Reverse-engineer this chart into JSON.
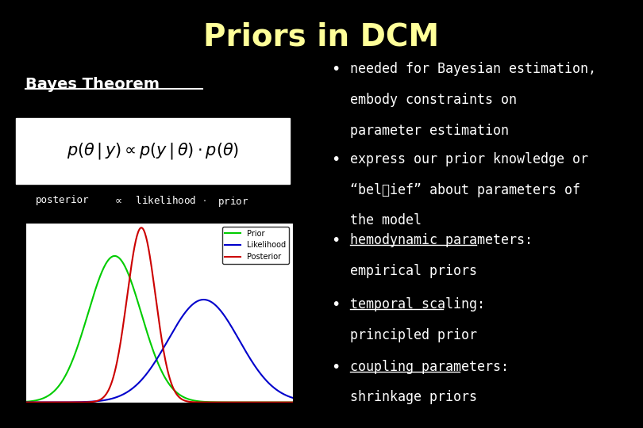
{
  "title": "Priors in DCM",
  "title_color": "#ffff99",
  "title_fontsize": 28,
  "background_color": "#000000",
  "text_color": "#ffffff",
  "bayes_heading": "Bayes Theorem",
  "prior_mean": 20,
  "prior_std": 1.5,
  "prior_peak": 0.57,
  "likelihood_mean": 25,
  "likelihood_std": 2.0,
  "likelihood_peak": 0.4,
  "posterior_mean": 21.5,
  "posterior_std": 0.8,
  "posterior_peak": 0.68,
  "prior_color": "#00cc00",
  "likelihood_color": "#0000cc",
  "posterior_color": "#cc0000",
  "plot_xlim": [
    15,
    30
  ],
  "plot_ylim": [
    0,
    0.7
  ],
  "plot_yticks": [
    0,
    0.1,
    0.2,
    0.3,
    0.4,
    0.5,
    0.6,
    0.7
  ],
  "plot_xticks": [
    15,
    20,
    25,
    30
  ]
}
